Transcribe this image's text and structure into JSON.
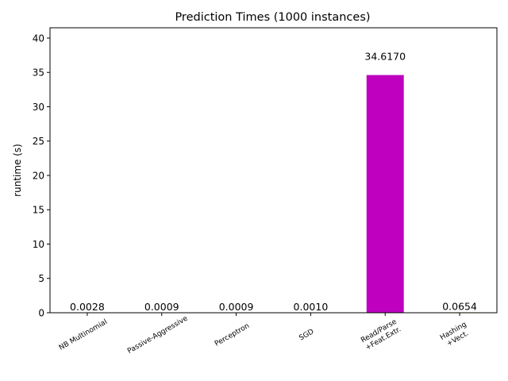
{
  "chart_data": {
    "type": "bar",
    "title": "Prediction Times (1000 instances)",
    "xlabel": "",
    "ylabel": "runtime (s)",
    "ylim": [
      0,
      41.5
    ],
    "yticks": [
      0,
      5,
      10,
      15,
      20,
      25,
      30,
      35,
      40
    ],
    "grid": false,
    "categories": [
      [
        "NB Multinomial"
      ],
      [
        "Passive-Aggressive"
      ],
      [
        "Perceptron"
      ],
      [
        "SGD"
      ],
      [
        "Read/Parse",
        "+Feat.Extr."
      ],
      [
        "Hashing",
        "+Vect."
      ]
    ],
    "values": [
      0.0028,
      0.0009,
      0.0009,
      0.001,
      34.617,
      0.0654
    ],
    "value_labels": [
      "0.0028",
      "0.0009",
      "0.0009",
      "0.0010",
      "34.6170",
      "0.0654"
    ],
    "colors": [
      "#1f77b4",
      "#008000",
      "#ff0000",
      "#00bfbf",
      "#bf00bf",
      "#bfbf00"
    ]
  }
}
